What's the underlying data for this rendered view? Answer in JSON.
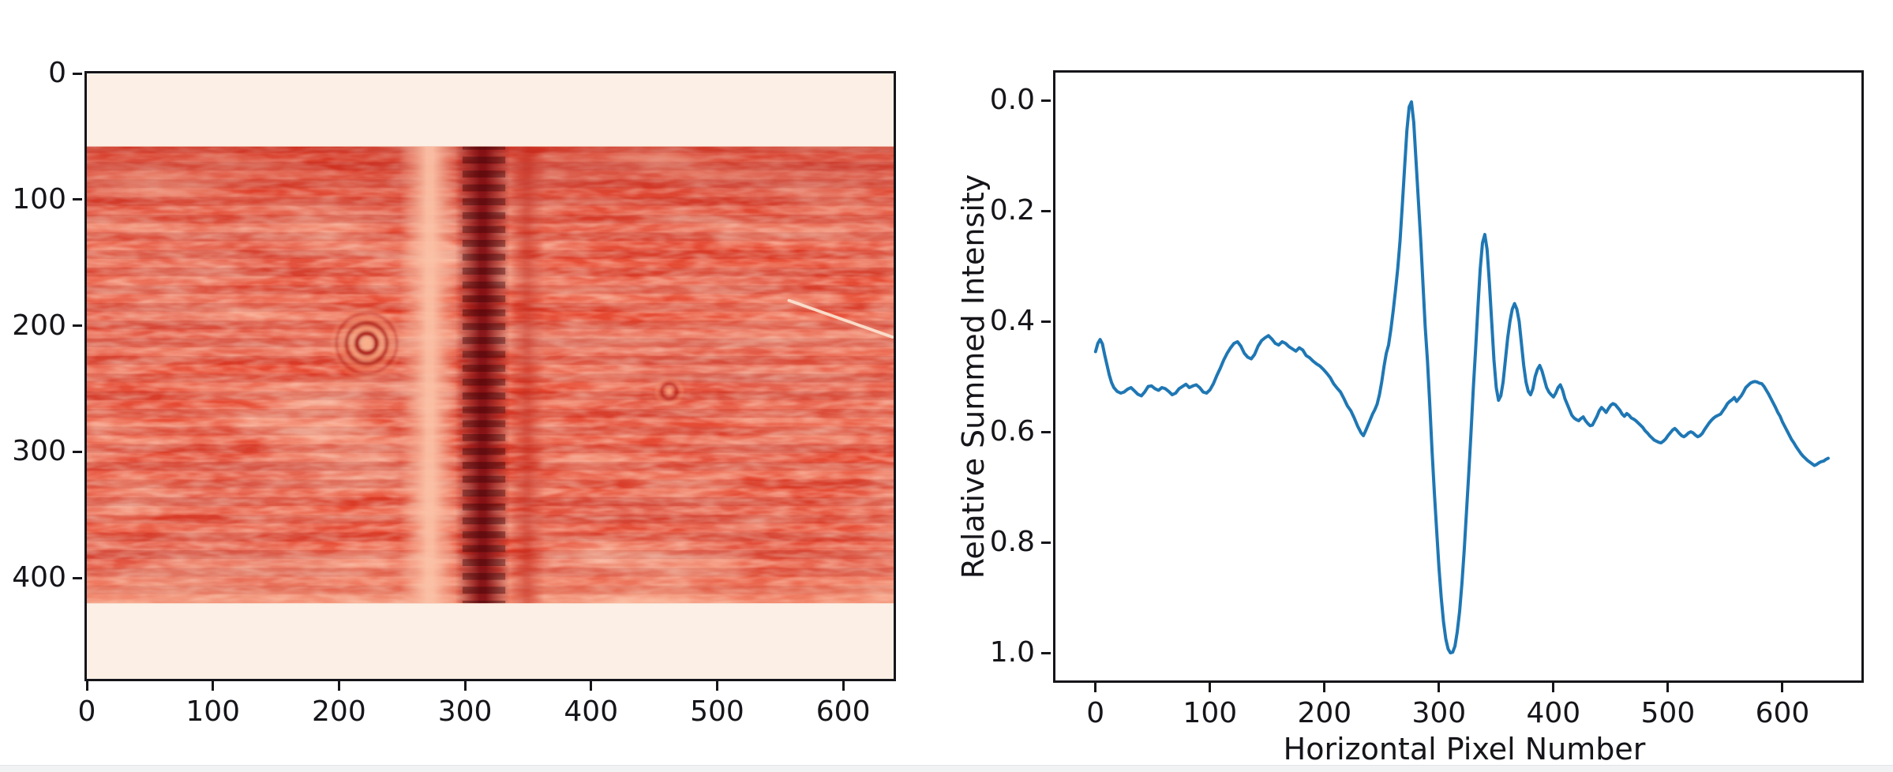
{
  "page": {
    "background_color": "#ffffff",
    "bottom_strip_color": "#f1f2f4"
  },
  "chart_data": [
    {
      "id": "detector-image",
      "type": "heatmap",
      "title": "",
      "xlabel": "",
      "ylabel": "",
      "colormap": "Reds",
      "xlim": [
        0,
        640
      ],
      "ylim": [
        0,
        480
      ],
      "grid": false,
      "xticks": [
        {
          "v": 0,
          "label": "0"
        },
        {
          "v": 100,
          "label": "100"
        },
        {
          "v": 200,
          "label": "200"
        },
        {
          "v": 300,
          "label": "300"
        },
        {
          "v": 400,
          "label": "400"
        },
        {
          "v": 500,
          "label": "500"
        },
        {
          "v": 600,
          "label": "600"
        }
      ],
      "yticks": [
        {
          "v": 0,
          "label": "0"
        },
        {
          "v": 100,
          "label": "100"
        },
        {
          "v": 200,
          "label": "200"
        },
        {
          "v": 300,
          "label": "300"
        },
        {
          "v": 400,
          "label": "400"
        }
      ],
      "image": {
        "background_color": "#fcf0e6",
        "base_color": "#e4402a",
        "data_rows": [
          58,
          420
        ],
        "noise_layers": [
          {
            "base_frequency": "0.008 0.045",
            "octaves": 4,
            "seed": 4,
            "rgb": [
              0.992,
              0.58,
              0.43
            ],
            "alpha_gain": 1.7,
            "alpha_bias": -0.6
          },
          {
            "base_frequency": "0.005 0.030",
            "octaves": 3,
            "seed": 11,
            "rgb": [
              0.7,
              0.1,
              0.07
            ],
            "alpha_gain": 1.5,
            "alpha_bias": -0.62
          },
          {
            "base_frequency": "0.050 0.220",
            "octaves": 2,
            "seed": 7,
            "rgb": [
              1.0,
              0.75,
              0.62
            ],
            "alpha_gain": 0.9,
            "alpha_bias": -0.28
          }
        ],
        "striation": {
          "period": 14,
          "dark": "rgba(128,10,8,0.11)",
          "light": "rgba(255,175,140,0.08)"
        },
        "shading": [
          {
            "edge": "top",
            "height": 72,
            "color": "rgba(180,22,14,0.30)"
          },
          {
            "edge": "bottom",
            "height": 34,
            "color": "rgba(252,198,168,0.45)"
          }
        ],
        "bands": [
          {
            "name": "bright-column",
            "x_center": 272,
            "half_width": 24,
            "color": "#fbc3a8",
            "peak_opacity": 0.92
          },
          {
            "name": "dark-absorption-column",
            "x_center": 314,
            "half_width": 22,
            "color": "#7f0c11",
            "peak_opacity": 0.92
          },
          {
            "name": "secondary-dark-column",
            "x_center": 349,
            "half_width": 14,
            "color": "#bf2418",
            "peak_opacity": 0.45
          }
        ],
        "dark_band_striation": {
          "x0": 298,
          "x1": 332,
          "period": 11,
          "color": "rgba(45,0,5,0.38)"
        },
        "ring_artifact": {
          "cx": 222,
          "cy": 214,
          "core": {
            "r": 5,
            "color": "#f9b28c",
            "opacity": 0.9
          },
          "rings": [
            {
              "r": 8,
              "color": "#a31310",
              "width": 3.5,
              "opacity": 0.9
            },
            {
              "r": 12,
              "color": "#f59d78",
              "width": 3.5,
              "opacity": 0.85
            },
            {
              "r": 16,
              "color": "#aa1712",
              "width": 3.0,
              "opacity": 0.75
            },
            {
              "r": 20,
              "color": "#ef8763",
              "width": 3.0,
              "opacity": 0.6
            },
            {
              "r": 24,
              "color": "#b51d14",
              "width": 2.5,
              "opacity": 0.45
            },
            {
              "r": 27,
              "color": "#f59d78",
              "width": 2.5,
              "opacity": 0.3
            }
          ]
        },
        "small_ring_artifact": {
          "cx": 462,
          "cy": 252,
          "core": {
            "r": 3,
            "color": "#f9b28c",
            "opacity": 0.8
          },
          "rings": [
            {
              "r": 6,
              "color": "#a81511",
              "width": 2.5,
              "opacity": 0.6
            },
            {
              "r": 10,
              "color": "#f59d78",
              "width": 2.5,
              "opacity": 0.4
            }
          ]
        },
        "streak": {
          "x1": 557,
          "y1": 180,
          "x2": 639,
          "y2": 209,
          "color": "#fbe2cf",
          "width": 2.4
        }
      }
    },
    {
      "id": "intensity-profile",
      "type": "line",
      "title": "",
      "xlabel": "Horizontal Pixel Number",
      "ylabel": "Relative Summed Intensity",
      "line_color": "#1f77b4",
      "line_width": 4,
      "grid": false,
      "legend": null,
      "xlim": [
        -35,
        669
      ],
      "ylim": [
        -0.05,
        1.05
      ],
      "xticks": [
        {
          "v": 0,
          "label": "0"
        },
        {
          "v": 100,
          "label": "100"
        },
        {
          "v": 200,
          "label": "200"
        },
        {
          "v": 300,
          "label": "300"
        },
        {
          "v": 400,
          "label": "400"
        },
        {
          "v": 500,
          "label": "500"
        },
        {
          "v": 600,
          "label": "600"
        }
      ],
      "yticks": [
        {
          "v": 0.0,
          "label": "0.0"
        },
        {
          "v": 0.2,
          "label": "0.2"
        },
        {
          "v": 0.4,
          "label": "0.4"
        },
        {
          "v": 0.6,
          "label": "0.6"
        },
        {
          "v": 0.8,
          "label": "0.8"
        },
        {
          "v": 1.0,
          "label": "1.0"
        }
      ],
      "x": [
        0,
        2,
        4,
        6,
        8,
        10,
        12,
        14,
        16,
        19,
        22,
        25,
        28,
        31,
        34,
        37,
        40,
        43,
        46,
        49,
        52,
        55,
        58,
        61,
        64,
        67,
        70,
        73,
        76,
        79,
        82,
        85,
        88,
        91,
        94,
        97,
        100,
        103,
        106,
        109,
        112,
        115,
        118,
        121,
        124,
        127,
        130,
        133,
        136,
        139,
        142,
        145,
        148,
        151,
        154,
        157,
        160,
        163,
        166,
        169,
        172,
        175,
        178,
        181,
        184,
        187,
        190,
        193,
        196,
        199,
        202,
        205,
        208,
        211,
        214,
        217,
        220,
        223,
        226,
        229,
        232,
        234,
        236,
        238,
        240,
        242,
        244,
        246,
        248,
        250,
        252,
        254,
        256,
        258,
        260,
        262,
        264,
        266,
        268,
        270,
        272,
        274,
        276,
        278,
        280,
        282,
        284,
        286,
        288,
        290,
        292,
        294,
        296,
        298,
        300,
        302,
        304,
        306,
        308,
        310,
        312,
        314,
        316,
        318,
        320,
        322,
        324,
        326,
        328,
        330,
        332,
        334,
        336,
        338,
        340,
        342,
        344,
        346,
        348,
        350,
        352,
        354,
        356,
        358,
        360,
        362,
        364,
        366,
        368,
        370,
        372,
        374,
        376,
        378,
        380,
        382,
        384,
        386,
        388,
        390,
        392,
        394,
        396,
        398,
        400,
        402,
        404,
        406,
        408,
        410,
        412,
        414,
        416,
        418,
        420,
        422,
        424,
        426,
        428,
        430,
        432,
        434,
        436,
        438,
        440,
        442,
        444,
        446,
        448,
        450,
        452,
        454,
        456,
        458,
        460,
        462,
        464,
        466,
        468,
        470,
        472,
        474,
        476,
        478,
        480,
        482,
        484,
        486,
        488,
        490,
        492,
        494,
        496,
        498,
        500,
        502,
        504,
        506,
        508,
        510,
        512,
        514,
        516,
        518,
        520,
        522,
        524,
        526,
        528,
        530,
        532,
        534,
        536,
        538,
        540,
        542,
        544,
        546,
        548,
        550,
        552,
        554,
        556,
        558,
        560,
        562,
        564,
        566,
        568,
        570,
        572,
        574,
        576,
        578,
        580,
        582,
        584,
        586,
        588,
        590,
        592,
        594,
        596,
        598,
        600,
        602,
        604,
        606,
        608,
        610,
        612,
        614,
        616,
        618,
        620,
        622,
        624,
        626,
        628,
        630,
        632,
        634,
        636,
        638,
        640
      ],
      "y": [
        0.455,
        0.44,
        0.433,
        0.441,
        0.461,
        0.479,
        0.497,
        0.511,
        0.52,
        0.527,
        0.53,
        0.528,
        0.523,
        0.52,
        0.526,
        0.532,
        0.535,
        0.528,
        0.518,
        0.517,
        0.522,
        0.525,
        0.52,
        0.522,
        0.527,
        0.533,
        0.53,
        0.522,
        0.518,
        0.514,
        0.52,
        0.517,
        0.515,
        0.52,
        0.528,
        0.53,
        0.524,
        0.513,
        0.498,
        0.485,
        0.47,
        0.458,
        0.448,
        0.44,
        0.437,
        0.445,
        0.458,
        0.465,
        0.468,
        0.46,
        0.445,
        0.435,
        0.43,
        0.426,
        0.432,
        0.44,
        0.443,
        0.437,
        0.44,
        0.446,
        0.45,
        0.454,
        0.448,
        0.452,
        0.462,
        0.466,
        0.472,
        0.477,
        0.481,
        0.487,
        0.494,
        0.502,
        0.513,
        0.521,
        0.528,
        0.54,
        0.553,
        0.562,
        0.575,
        0.59,
        0.602,
        0.607,
        0.598,
        0.588,
        0.578,
        0.568,
        0.56,
        0.55,
        0.533,
        0.51,
        0.482,
        0.458,
        0.443,
        0.415,
        0.382,
        0.345,
        0.305,
        0.255,
        0.19,
        0.122,
        0.055,
        0.012,
        0.003,
        0.04,
        0.11,
        0.18,
        0.25,
        0.33,
        0.41,
        0.472,
        0.55,
        0.635,
        0.71,
        0.778,
        0.845,
        0.9,
        0.944,
        0.975,
        0.993,
        1.0,
        0.999,
        0.988,
        0.962,
        0.925,
        0.875,
        0.815,
        0.745,
        0.675,
        0.6,
        0.52,
        0.45,
        0.375,
        0.305,
        0.258,
        0.243,
        0.27,
        0.33,
        0.4,
        0.47,
        0.52,
        0.543,
        0.535,
        0.51,
        0.47,
        0.43,
        0.4,
        0.378,
        0.368,
        0.378,
        0.4,
        0.44,
        0.48,
        0.51,
        0.527,
        0.533,
        0.522,
        0.5,
        0.487,
        0.48,
        0.49,
        0.505,
        0.52,
        0.528,
        0.533,
        0.537,
        0.53,
        0.52,
        0.515,
        0.525,
        0.54,
        0.55,
        0.56,
        0.57,
        0.575,
        0.578,
        0.58,
        0.576,
        0.573,
        0.58,
        0.585,
        0.589,
        0.588,
        0.58,
        0.572,
        0.562,
        0.556,
        0.56,
        0.565,
        0.558,
        0.552,
        0.549,
        0.551,
        0.556,
        0.561,
        0.568,
        0.572,
        0.567,
        0.57,
        0.575,
        0.577,
        0.58,
        0.584,
        0.588,
        0.592,
        0.598,
        0.602,
        0.607,
        0.611,
        0.615,
        0.617,
        0.619,
        0.62,
        0.617,
        0.613,
        0.607,
        0.602,
        0.597,
        0.594,
        0.598,
        0.603,
        0.607,
        0.609,
        0.606,
        0.602,
        0.6,
        0.602,
        0.606,
        0.609,
        0.607,
        0.603,
        0.596,
        0.59,
        0.584,
        0.579,
        0.575,
        0.572,
        0.57,
        0.568,
        0.562,
        0.556,
        0.549,
        0.545,
        0.542,
        0.538,
        0.545,
        0.54,
        0.535,
        0.528,
        0.52,
        0.516,
        0.512,
        0.51,
        0.509,
        0.51,
        0.512,
        0.513,
        0.518,
        0.525,
        0.532,
        0.54,
        0.548,
        0.556,
        0.565,
        0.572,
        0.582,
        0.59,
        0.598,
        0.606,
        0.614,
        0.62,
        0.627,
        0.633,
        0.639,
        0.644,
        0.648,
        0.652,
        0.655,
        0.658,
        0.661,
        0.659,
        0.656,
        0.654,
        0.653,
        0.65,
        0.648
      ]
    }
  ]
}
